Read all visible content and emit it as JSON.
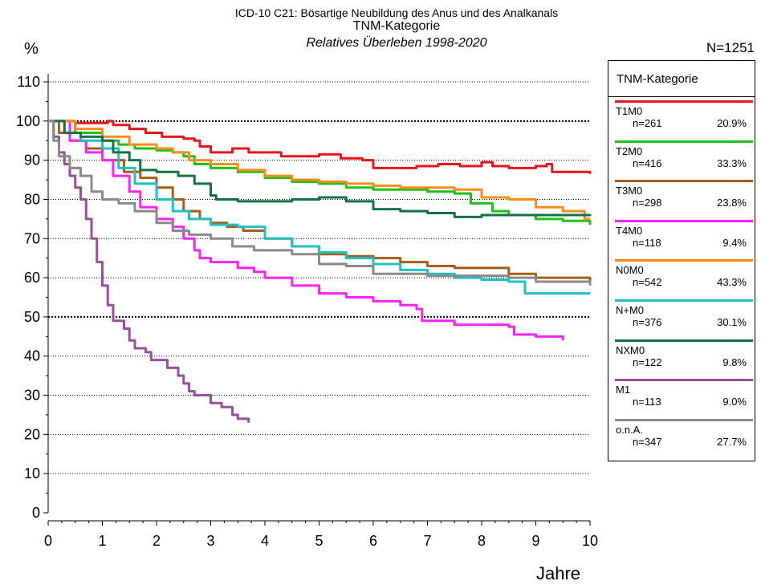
{
  "chart_data": {
    "type": "line",
    "title": "ICD-10 C21: Bösartige Neubildung des Anus und des Analkanals",
    "subtitle": "TNM-Kategorie",
    "subtitle2": "Relatives Überleben 1998-2020",
    "ylabel": "%",
    "xlabel": "Jahre",
    "n_total": "N=1251",
    "xlim": [
      0,
      10
    ],
    "ylim": [
      0,
      110
    ],
    "x_ticks": [
      0,
      1,
      2,
      3,
      4,
      5,
      6,
      7,
      8,
      9,
      10
    ],
    "y_ticks": [
      0,
      10,
      20,
      30,
      40,
      50,
      60,
      70,
      80,
      90,
      100,
      110
    ],
    "grid": "horizontal dotted",
    "emphasized_gridlines": [
      50,
      100
    ],
    "legend": {
      "title": "TNM-Kategorie",
      "placement": "right"
    },
    "series": [
      {
        "name": "T1M0",
        "n": "n=261",
        "pct": "20.9%",
        "color": "#e8161a",
        "points": [
          [
            0,
            100
          ],
          [
            0.5,
            99.5
          ],
          [
            1.1,
            100
          ],
          [
            1.2,
            99
          ],
          [
            1.5,
            98
          ],
          [
            1.8,
            97
          ],
          [
            2.1,
            96
          ],
          [
            2.5,
            95.5
          ],
          [
            2.7,
            95
          ],
          [
            2.8,
            93.5
          ],
          [
            3,
            92
          ],
          [
            3.2,
            92
          ],
          [
            3.4,
            93
          ],
          [
            3.7,
            92
          ],
          [
            4,
            92
          ],
          [
            4.3,
            91
          ],
          [
            5,
            91.5
          ],
          [
            5.4,
            90.5
          ],
          [
            5.8,
            90
          ],
          [
            6,
            88
          ],
          [
            6.2,
            88
          ],
          [
            6.8,
            88.5
          ],
          [
            7.2,
            89
          ],
          [
            7.6,
            88.5
          ],
          [
            8,
            89.5
          ],
          [
            8.2,
            88.5
          ],
          [
            8.5,
            88
          ],
          [
            9,
            88.5
          ],
          [
            9.2,
            89
          ],
          [
            9.3,
            87
          ],
          [
            10,
            86.5
          ]
        ]
      },
      {
        "name": "T2M0",
        "n": "n=416",
        "pct": "33.3%",
        "color": "#1fc11a",
        "points": [
          [
            0,
            100
          ],
          [
            0.5,
            97
          ],
          [
            1,
            95
          ],
          [
            1.3,
            94
          ],
          [
            1.6,
            93
          ],
          [
            2,
            92.5
          ],
          [
            2.3,
            92
          ],
          [
            2.5,
            91
          ],
          [
            2.7,
            89
          ],
          [
            3,
            88
          ],
          [
            3.5,
            87
          ],
          [
            4,
            85.5
          ],
          [
            4.5,
            84.5
          ],
          [
            5,
            84
          ],
          [
            5.5,
            83
          ],
          [
            6,
            82.5
          ],
          [
            6.5,
            82.5
          ],
          [
            7,
            82
          ],
          [
            7.5,
            81.5
          ],
          [
            7.8,
            79
          ],
          [
            8,
            79
          ],
          [
            8.2,
            77
          ],
          [
            8.5,
            76
          ],
          [
            9,
            75
          ],
          [
            9.5,
            74.5
          ],
          [
            10,
            73.5
          ]
        ]
      },
      {
        "name": "T3M0",
        "n": "n=298",
        "pct": "23.8%",
        "color": "#a85e16",
        "points": [
          [
            0,
            100
          ],
          [
            0.2,
            97
          ],
          [
            0.4,
            95
          ],
          [
            0.7,
            93
          ],
          [
            1,
            90
          ],
          [
            1.4,
            87
          ],
          [
            1.7,
            85.5
          ],
          [
            2,
            83
          ],
          [
            2.3,
            80
          ],
          [
            2.5,
            77
          ],
          [
            2.8,
            75
          ],
          [
            3,
            74
          ],
          [
            3.3,
            73
          ],
          [
            3.6,
            72
          ],
          [
            4,
            70
          ],
          [
            4.5,
            68
          ],
          [
            5,
            66
          ],
          [
            5.5,
            65.5
          ],
          [
            6,
            65
          ],
          [
            6.5,
            64
          ],
          [
            7,
            63
          ],
          [
            7.5,
            62.5
          ],
          [
            8,
            62.5
          ],
          [
            8.5,
            61
          ],
          [
            9,
            60
          ],
          [
            9.5,
            60
          ],
          [
            10,
            58.5
          ]
        ]
      },
      {
        "name": "T4M0",
        "n": "n=118",
        "pct": "9.4%",
        "color": "#ff22ff",
        "points": [
          [
            0,
            100
          ],
          [
            0.4,
            95
          ],
          [
            0.7,
            92
          ],
          [
            1,
            90
          ],
          [
            1.2,
            86
          ],
          [
            1.5,
            82
          ],
          [
            1.7,
            78
          ],
          [
            2,
            75
          ],
          [
            2.3,
            73
          ],
          [
            2.5,
            70
          ],
          [
            2.7,
            67
          ],
          [
            2.8,
            65
          ],
          [
            3,
            64
          ],
          [
            3.5,
            62.5
          ],
          [
            3.8,
            61.5
          ],
          [
            4,
            60
          ],
          [
            4.5,
            58
          ],
          [
            5,
            56
          ],
          [
            5.5,
            55
          ],
          [
            6,
            54
          ],
          [
            6.5,
            53
          ],
          [
            6.8,
            52
          ],
          [
            6.9,
            49
          ],
          [
            7.5,
            48
          ],
          [
            8.5,
            47.5
          ],
          [
            8.6,
            45.5
          ],
          [
            9,
            45
          ],
          [
            9.5,
            44
          ]
        ]
      },
      {
        "name": "N0M0",
        "n": "n=542",
        "pct": "43.3%",
        "color": "#ff8c1a",
        "points": [
          [
            0,
            100
          ],
          [
            0.5,
            98
          ],
          [
            1,
            96
          ],
          [
            1.5,
            94
          ],
          [
            2,
            93
          ],
          [
            2.3,
            92
          ],
          [
            2.6,
            90
          ],
          [
            3,
            89
          ],
          [
            3.5,
            87.5
          ],
          [
            4,
            86
          ],
          [
            4.5,
            85
          ],
          [
            5,
            84.5
          ],
          [
            5.5,
            84
          ],
          [
            6,
            83.5
          ],
          [
            6.5,
            83
          ],
          [
            7,
            83
          ],
          [
            7.5,
            82.5
          ],
          [
            7.9,
            82.5
          ],
          [
            8,
            80.5
          ],
          [
            8.5,
            80
          ],
          [
            9,
            78
          ],
          [
            9.5,
            77
          ],
          [
            9.9,
            75
          ],
          [
            10,
            75
          ]
        ]
      },
      {
        "name": "N+M0",
        "n": "n=376",
        "pct": "30.1%",
        "color": "#1ec2c4",
        "points": [
          [
            0,
            100
          ],
          [
            0.3,
            97
          ],
          [
            0.6,
            95
          ],
          [
            1,
            93
          ],
          [
            1.3,
            88
          ],
          [
            1.6,
            84
          ],
          [
            2,
            80
          ],
          [
            2.3,
            77
          ],
          [
            2.6,
            75
          ],
          [
            3,
            73.5
          ],
          [
            3.5,
            73
          ],
          [
            4,
            70
          ],
          [
            4.5,
            68
          ],
          [
            5,
            66.5
          ],
          [
            5.5,
            65
          ],
          [
            6,
            63.5
          ],
          [
            6.5,
            62
          ],
          [
            7,
            61
          ],
          [
            7.5,
            60
          ],
          [
            8,
            59.5
          ],
          [
            8.5,
            59
          ],
          [
            8.8,
            56
          ],
          [
            9.5,
            56
          ],
          [
            10,
            56
          ]
        ]
      },
      {
        "name": "NXM0",
        "n": "n=122",
        "pct": "9.8%",
        "color": "#137346",
        "points": [
          [
            0,
            100
          ],
          [
            0.3,
            97
          ],
          [
            0.6,
            96
          ],
          [
            1,
            95
          ],
          [
            1.2,
            92
          ],
          [
            1.5,
            90
          ],
          [
            1.7,
            87.5
          ],
          [
            2,
            87
          ],
          [
            2.4,
            86
          ],
          [
            2.7,
            84
          ],
          [
            3,
            81
          ],
          [
            3.1,
            80
          ],
          [
            3.5,
            79.5
          ],
          [
            4,
            79.5
          ],
          [
            4.5,
            80
          ],
          [
            5,
            80.5
          ],
          [
            5.5,
            79.5
          ],
          [
            6,
            77.5
          ],
          [
            6.5,
            77
          ],
          [
            7,
            76.5
          ],
          [
            7.5,
            75.5
          ],
          [
            8,
            76
          ],
          [
            8.5,
            76
          ],
          [
            9,
            76
          ],
          [
            10,
            76.2
          ]
        ]
      },
      {
        "name": "M1",
        "n": "n=113",
        "pct": "9.0%",
        "color": "#9b4d9e",
        "points": [
          [
            0,
            100
          ],
          [
            0.1,
            96
          ],
          [
            0.2,
            92
          ],
          [
            0.3,
            89
          ],
          [
            0.4,
            86
          ],
          [
            0.5,
            83
          ],
          [
            0.6,
            80
          ],
          [
            0.7,
            75
          ],
          [
            0.8,
            70
          ],
          [
            0.9,
            64
          ],
          [
            1,
            58
          ],
          [
            1.1,
            53
          ],
          [
            1.2,
            49
          ],
          [
            1.4,
            47
          ],
          [
            1.5,
            44
          ],
          [
            1.6,
            42
          ],
          [
            1.8,
            41
          ],
          [
            1.9,
            39
          ],
          [
            2,
            39
          ],
          [
            2.2,
            37
          ],
          [
            2.4,
            35
          ],
          [
            2.5,
            33
          ],
          [
            2.6,
            31
          ],
          [
            2.7,
            30
          ],
          [
            3,
            28
          ],
          [
            3.2,
            27
          ],
          [
            3.4,
            25
          ],
          [
            3.5,
            24
          ],
          [
            3.7,
            23
          ]
        ]
      },
      {
        "name": "o.n.A.",
        "n": "n=347",
        "pct": "27.7%",
        "color": "#8a8a8a",
        "points": [
          [
            0,
            100
          ],
          [
            0.1,
            95
          ],
          [
            0.2,
            91
          ],
          [
            0.4,
            88
          ],
          [
            0.6,
            86
          ],
          [
            0.8,
            82
          ],
          [
            1,
            80
          ],
          [
            1.3,
            79
          ],
          [
            1.6,
            77
          ],
          [
            2,
            74
          ],
          [
            2.3,
            72
          ],
          [
            2.6,
            71
          ],
          [
            3,
            70
          ],
          [
            3.4,
            68
          ],
          [
            3.8,
            67
          ],
          [
            4.5,
            66
          ],
          [
            5,
            63.5
          ],
          [
            5.5,
            63
          ],
          [
            6,
            61
          ],
          [
            6.5,
            61
          ],
          [
            7,
            60.5
          ],
          [
            7.5,
            60.5
          ],
          [
            8,
            60.5
          ],
          [
            8.5,
            60
          ],
          [
            9,
            59
          ],
          [
            9.5,
            59
          ],
          [
            10,
            58
          ]
        ]
      }
    ]
  }
}
